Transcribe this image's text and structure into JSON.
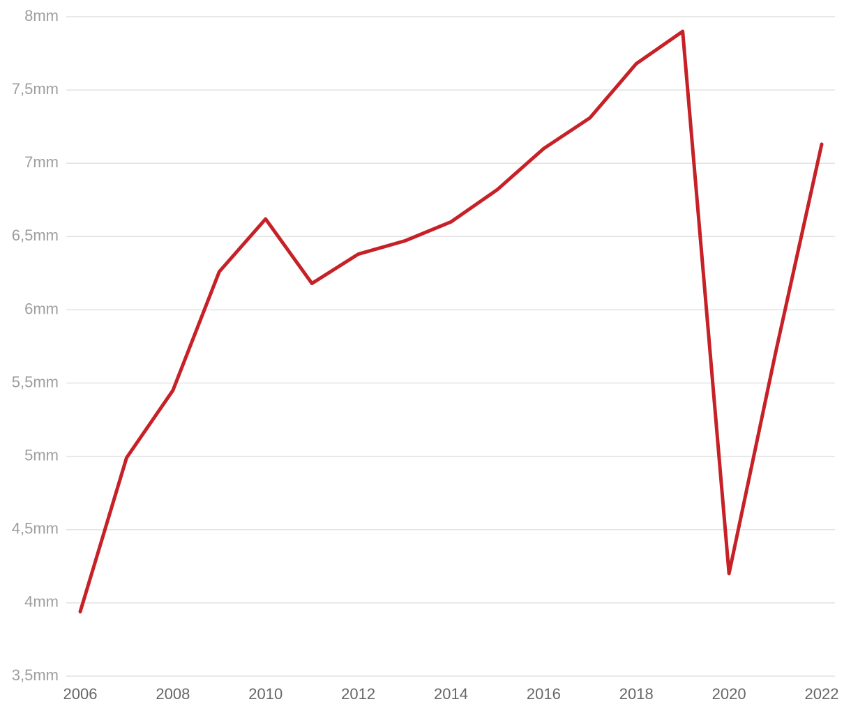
{
  "chart_data": {
    "type": "line",
    "x": [
      2006,
      2007,
      2008,
      2009,
      2010,
      2011,
      2012,
      2013,
      2014,
      2015,
      2016,
      2017,
      2018,
      2019,
      2020,
      2021,
      2022
    ],
    "values": [
      3.94,
      4.99,
      5.45,
      6.26,
      6.62,
      6.18,
      6.38,
      6.47,
      6.6,
      6.82,
      7.1,
      7.31,
      7.68,
      7.9,
      4.2,
      5.7,
      7.13
    ],
    "color": "#c62127",
    "xlim": [
      2006,
      2022
    ],
    "xticks": [
      2006,
      2008,
      2010,
      2012,
      2014,
      2016,
      2018,
      2020,
      2022
    ],
    "ylim": [
      3.5,
      8
    ],
    "yticks": [
      {
        "value": 3.5,
        "label": "3,5mm"
      },
      {
        "value": 4,
        "label": "4mm"
      },
      {
        "value": 4.5,
        "label": "4,5mm"
      },
      {
        "value": 5,
        "label": "5mm"
      },
      {
        "value": 5.5,
        "label": "5,5mm"
      },
      {
        "value": 6,
        "label": "6mm"
      },
      {
        "value": 6.5,
        "label": "6,5mm"
      },
      {
        "value": 7,
        "label": "7mm"
      },
      {
        "value": 7.5,
        "label": "7,5mm"
      },
      {
        "value": 8,
        "label": "8mm"
      }
    ],
    "grid": true
  }
}
